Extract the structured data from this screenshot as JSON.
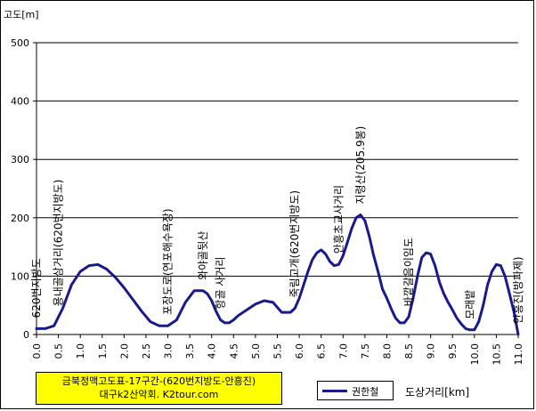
{
  "chart_data": {
    "type": "line",
    "title": "금북정맥고도표-17구간-(620번지방도-안흥진)",
    "subtitle": "대구k2산악회. K2tour.com",
    "ylabel": "고도[m]",
    "xlabel": "도상거리[km]",
    "ylim": [
      0,
      500
    ],
    "xlim": [
      0,
      11
    ],
    "yticks": [
      "0",
      "100",
      "200",
      "300",
      "400",
      "500"
    ],
    "xticks": [
      "0.0",
      "0.5",
      "1.0",
      "1.5",
      "2.0",
      "2.5",
      "3.0",
      "3.5",
      "4.0",
      "4.5",
      "5.0",
      "5.5",
      "6.0",
      "6.5",
      "7.0",
      "7.5",
      "8.0",
      "8.5",
      "9.0",
      "9.5",
      "10.0",
      "10.5",
      "11.0"
    ],
    "grid": "horizontal",
    "legend": "bottom",
    "series": [
      {
        "name": "권한철",
        "color": "#1a1a8c",
        "x": [
          0,
          0.2,
          0.4,
          0.6,
          0.8,
          1.0,
          1.2,
          1.4,
          1.6,
          1.8,
          2.0,
          2.2,
          2.4,
          2.6,
          2.8,
          3.0,
          3.2,
          3.4,
          3.6,
          3.8,
          3.9,
          4.0,
          4.1,
          4.2,
          4.3,
          4.4,
          4.5,
          4.6,
          4.8,
          5.0,
          5.2,
          5.4,
          5.6,
          5.8,
          5.9,
          6.0,
          6.1,
          6.2,
          6.3,
          6.4,
          6.5,
          6.6,
          6.7,
          6.8,
          6.9,
          7.0,
          7.1,
          7.2,
          7.3,
          7.4,
          7.5,
          7.6,
          7.7,
          7.8,
          7.9,
          8.0,
          8.1,
          8.2,
          8.3,
          8.4,
          8.5,
          8.6,
          8.7,
          8.8,
          8.9,
          9.0,
          9.1,
          9.2,
          9.3,
          9.4,
          9.5,
          9.6,
          9.7,
          9.8,
          9.9,
          10.0,
          10.1,
          10.2,
          10.3,
          10.4,
          10.5,
          10.6,
          10.7,
          10.8,
          10.9,
          11.0
        ],
        "values": [
          10,
          10,
          15,
          45,
          85,
          108,
          118,
          120,
          112,
          98,
          80,
          60,
          40,
          22,
          15,
          15,
          25,
          55,
          75,
          75,
          70,
          58,
          40,
          25,
          20,
          20,
          25,
          32,
          42,
          52,
          58,
          55,
          38,
          38,
          45,
          62,
          85,
          108,
          128,
          140,
          145,
          138,
          125,
          118,
          120,
          135,
          158,
          182,
          200,
          205,
          195,
          168,
          135,
          108,
          78,
          62,
          44,
          28,
          20,
          20,
          30,
          62,
          100,
          132,
          140,
          138,
          118,
          90,
          70,
          55,
          42,
          28,
          18,
          10,
          8,
          8,
          22,
          50,
          85,
          108,
          120,
          118,
          100,
          70,
          40,
          0
        ]
      }
    ],
    "annotations": [
      {
        "x": 0,
        "text": "620번지방도"
      },
      {
        "x": 0.5,
        "text": "용내골삼거리(620번지방도)"
      },
      {
        "x": 3.0,
        "text": "포장도로(연포해수욕장)"
      },
      {
        "x": 3.8,
        "text": "와야골뒷산"
      },
      {
        "x": 4.2,
        "text": "항골 사거리"
      },
      {
        "x": 5.9,
        "text": "죽림고개(620번지방도)"
      },
      {
        "x": 6.9,
        "text": "안흥초교사거리"
      },
      {
        "x": 7.4,
        "text": "지령산(205.9봉)"
      },
      {
        "x": 8.5,
        "text": "바깥갈음이임도"
      },
      {
        "x": 9.9,
        "text": "모래밭"
      },
      {
        "x": 11.0,
        "text": "안흥진(방파제)"
      }
    ]
  }
}
